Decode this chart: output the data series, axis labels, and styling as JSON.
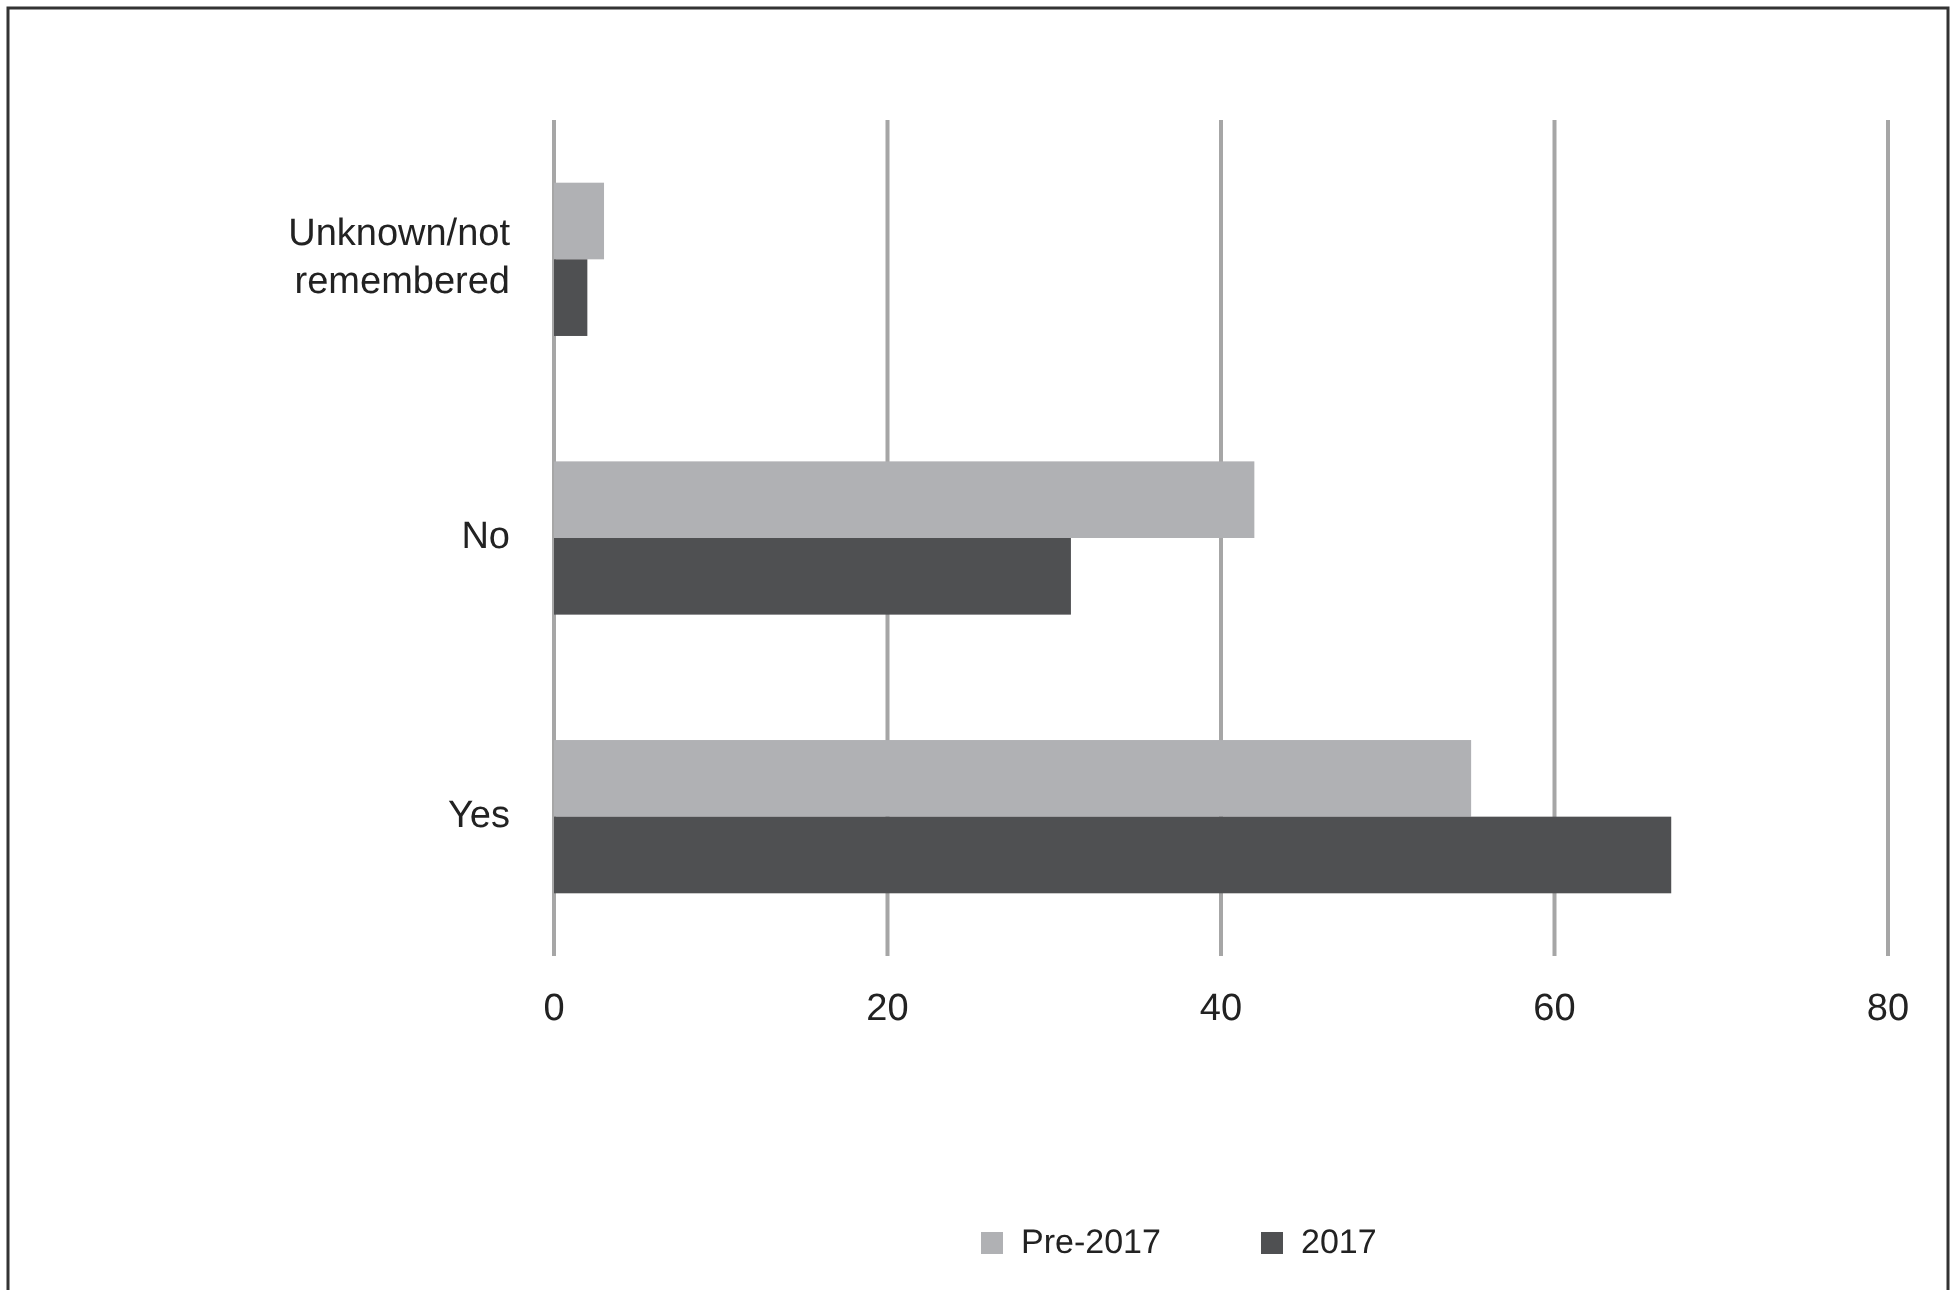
{
  "chart_data": {
    "type": "bar",
    "orientation": "horizontal",
    "categories": [
      "Unknown/not remembered",
      "No",
      "Yes"
    ],
    "series": [
      {
        "name": "Pre-2017",
        "color": "#b0b1b4",
        "values": [
          3,
          42,
          55
        ]
      },
      {
        "name": "2017",
        "color": "#4f5052",
        "values": [
          2,
          31,
          67
        ]
      }
    ],
    "xlim": [
      0,
      80
    ],
    "xticks": [
      0,
      20,
      40,
      60,
      80
    ],
    "grid": "x",
    "legend": "bottom"
  }
}
